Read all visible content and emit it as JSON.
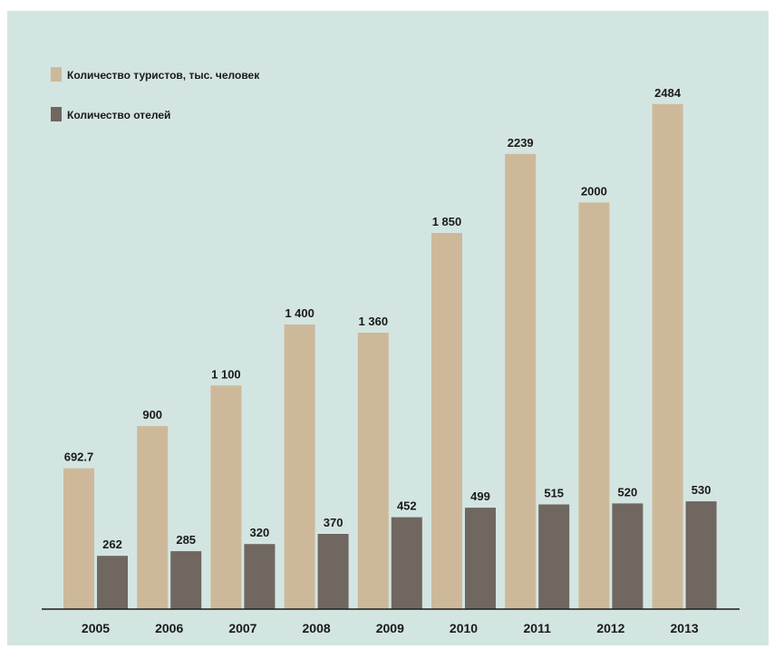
{
  "chart_data": {
    "type": "bar",
    "categories": [
      "2005",
      "2006",
      "2007",
      "2008",
      "2009",
      "2010",
      "2011",
      "2012",
      "2013"
    ],
    "series": [
      {
        "name": "Количество туристов, тыс. человек",
        "color": "#cdb99a",
        "values": [
          692.7,
          900,
          1100,
          1400,
          1360,
          1850,
          2239,
          2000,
          2484
        ],
        "labels": [
          "692.7",
          "900",
          "1 100",
          "1 400",
          "1 360",
          "1 850",
          "2239",
          "2000",
          "2484"
        ]
      },
      {
        "name": "Количество отелей",
        "color": "#6f6760",
        "values": [
          262,
          285,
          320,
          370,
          452,
          499,
          515,
          520,
          530
        ],
        "labels": [
          "262",
          "285",
          "320",
          "370",
          "452",
          "499",
          "515",
          "520",
          "530"
        ]
      }
    ],
    "legend": "top-left",
    "grid": false,
    "y_axis": "none"
  }
}
